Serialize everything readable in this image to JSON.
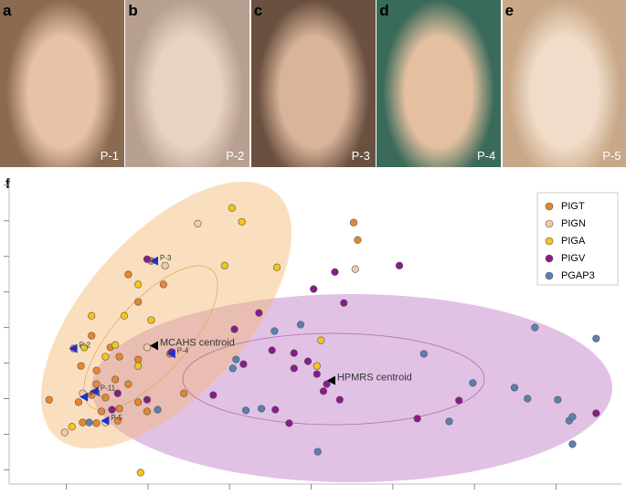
{
  "photos": [
    {
      "letter": "a",
      "patient": "P-1"
    },
    {
      "letter": "b",
      "patient": "P-2"
    },
    {
      "letter": "c",
      "patient": "P-3"
    },
    {
      "letter": "d",
      "patient": "P-4"
    },
    {
      "letter": "e",
      "patient": "P-5"
    }
  ],
  "chart_data": {
    "type": "scatter",
    "panel_label": "f",
    "xlim": [
      -0.7,
      6.8
    ],
    "ylim": [
      -0.4,
      8.2
    ],
    "xticks": [
      0,
      1,
      2,
      3,
      4,
      5,
      6
    ],
    "yticks": [
      0,
      1,
      2,
      3,
      4,
      5,
      6,
      7,
      8
    ],
    "legend": "upper right",
    "series": [
      {
        "name": "PIGT",
        "color": "#e8862c",
        "x": [
          1.04,
          0.09,
          0.31,
          0.54,
          0.65,
          0.37,
          0.6,
          0.18,
          0.88,
          -0.21,
          0.15,
          0.31,
          0.43,
          0.63,
          0.2,
          0.88,
          0.99,
          1.44,
          1.27,
          0.76,
          0.88,
          3.52,
          3.57,
          0.37,
          0.48,
          0.65,
          1.19,
          0.37,
          0.76
        ],
        "values": [
          5.87,
          3.41,
          3.77,
          3.44,
          3.18,
          2.79,
          2.54,
          2.92,
          3.1,
          1.97,
          1.9,
          2.1,
          1.64,
          1.38,
          1.33,
          1.9,
          1.64,
          2.15,
          3.26,
          5.49,
          4.72,
          6.95,
          6.46,
          2.41,
          2.03,
          1.72,
          5.21,
          1.31,
          2.41
        ]
      },
      {
        "name": "PIGN",
        "color": "#f2cba8",
        "x": [
          1.61,
          3.54,
          -0.02,
          0.48,
          0.2,
          0.99,
          1.21
        ],
        "values": [
          6.92,
          5.64,
          1.05,
          1.33,
          2.15,
          3.44,
          5.74
        ]
      },
      {
        "name": "PIGA",
        "color": "#f5c518",
        "x": [
          2.03,
          2.15,
          1.94,
          2.58,
          0.88,
          1.04,
          0.31,
          0.71,
          0.6,
          0.48,
          0.07,
          0.91,
          3.12,
          3.07,
          0.88,
          0.22
        ],
        "values": [
          7.36,
          6.97,
          5.74,
          5.69,
          5.21,
          4.21,
          4.33,
          4.33,
          3.51,
          3.18,
          1.21,
          -0.08,
          3.64,
          2.92,
          2.92,
          3.44
        ]
      },
      {
        "name": "PIGV",
        "color": "#8b1a8b",
        "x": [
          0.99,
          1.29,
          3.29,
          4.08,
          3.03,
          3.4,
          2.36,
          2.06,
          2.52,
          2.79,
          2.96,
          2.79,
          3.07,
          3.19,
          3.15,
          3.35,
          1.8,
          2.56,
          2.73,
          2.17,
          4.3,
          4.81,
          6.49,
          0.63,
          0.56,
          0.99
        ],
        "values": [
          5.92,
          3.31,
          5.56,
          5.74,
          5.08,
          4.69,
          4.41,
          3.95,
          3.36,
          3.28,
          3.05,
          2.85,
          2.69,
          2.41,
          2.21,
          1.97,
          2.1,
          1.69,
          1.31,
          2.97,
          1.44,
          1.95,
          1.59,
          2.15,
          1.69,
          1.97
        ]
      },
      {
        "name": "PGAP3",
        "color": "#5b7fb0",
        "x": [
          2.55,
          2.87,
          2.08,
          2.04,
          2.2,
          2.39,
          4.38,
          4.98,
          5.74,
          6.49,
          5.49,
          5.65,
          6.02,
          6.16,
          6.2,
          6.2,
          4.69,
          3.08,
          1.12,
          0.28
        ],
        "values": [
          3.9,
          4.08,
          3.1,
          2.85,
          1.67,
          1.72,
          3.26,
          2.44,
          4.0,
          3.69,
          2.31,
          2.0,
          1.97,
          1.38,
          1.49,
          0.72,
          1.36,
          0.51,
          1.69,
          1.33
        ]
      }
    ],
    "annotations": [
      {
        "text": "MCAHS centroid",
        "x": 1.08,
        "y": 3.49,
        "color": "#000000"
      },
      {
        "text": "HPMRS centroid",
        "x": 3.25,
        "y": 2.51,
        "color": "#000000"
      },
      {
        "text": "P-3",
        "x": 1.08,
        "y": 5.87,
        "color": "#1f2fd0"
      },
      {
        "text": "P-2",
        "x": 0.09,
        "y": 3.41,
        "color": "#1f2fd0"
      },
      {
        "text": "P-4",
        "x": 1.29,
        "y": 3.26,
        "color": "#1f2fd0"
      },
      {
        "text": "P-11",
        "x": 0.35,
        "y": 2.21,
        "color": "#1f2fd0"
      },
      {
        "text": "P-1",
        "x": 0.22,
        "y": 2.05,
        "color": "#1f2fd0"
      },
      {
        "text": "P-5",
        "x": 0.48,
        "y": 1.38,
        "color": "#1f2fd0"
      }
    ]
  }
}
